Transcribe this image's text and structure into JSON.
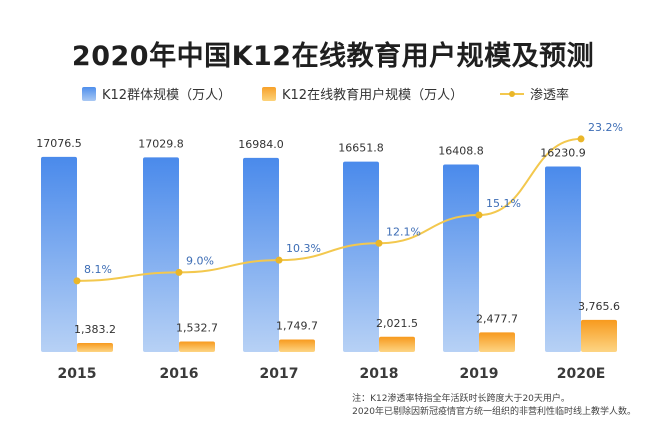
{
  "chart_data": {
    "type": "bar",
    "title": "2020年中国K12在线教育用户规模及预测",
    "categories": [
      "2015",
      "2016",
      "2017",
      "2018",
      "2019",
      "2020E"
    ],
    "series": [
      {
        "name": "K12群体规模（万人）",
        "kind": "bar",
        "color": "#4f8fec",
        "values": [
          17076.5,
          17029.8,
          16984.0,
          16651.8,
          16408.8,
          16230.9
        ],
        "labels": [
          "17076.5",
          "17029.8",
          "16984.0",
          "16651.8",
          "16408.8",
          "16230.9"
        ]
      },
      {
        "name": "K12在线教育用户规模（万人）",
        "kind": "bar",
        "color": "#f7a12a",
        "values": [
          1383.2,
          1532.7,
          1749.7,
          2021.5,
          2477.7,
          3765.6
        ],
        "labels": [
          "1,383.2",
          "1,532.7",
          "1,749.7",
          "2,021.5",
          "2,477.7",
          "3,765.6"
        ]
      },
      {
        "name": "渗透率",
        "kind": "line",
        "color": "#eab629",
        "values": [
          8.1,
          9.0,
          10.3,
          12.1,
          15.1,
          23.2
        ],
        "labels": [
          "8.1%",
          "9.0%",
          "10.3%",
          "12.1%",
          "15.1%",
          "23.2%"
        ]
      }
    ],
    "legend": "top-center",
    "grid": false,
    "footnote": [
      "注：K12渗透率特指全年活跃时长跨度大于20天用户。",
      "2020年已剔除因新冠疫情官方统一组织的非营利性临时线上教学人数。"
    ]
  }
}
